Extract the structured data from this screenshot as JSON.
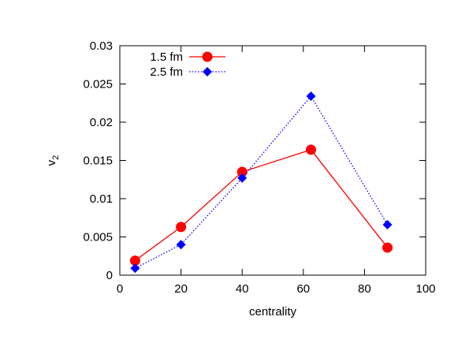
{
  "chart_data": {
    "type": "line",
    "xlabel": "centrality",
    "ylabel": "v",
    "ylabel_sub": "2",
    "xlim": [
      0,
      100
    ],
    "ylim": [
      0,
      0.03
    ],
    "xticks": [
      0,
      20,
      40,
      60,
      80,
      100
    ],
    "yticks": [
      0,
      0.005,
      0.01,
      0.015,
      0.02,
      0.025,
      0.03
    ],
    "xtick_labels": [
      "0",
      "20",
      "40",
      "60",
      "80",
      "100"
    ],
    "ytick_labels": [
      "0",
      "0.005",
      "0.01",
      "0.015",
      "0.02",
      "0.025",
      "0.03"
    ],
    "grid": false,
    "legend": "top-left",
    "series": [
      {
        "name": "1.5 fm",
        "color": "#ff0000",
        "line": "solid",
        "marker": "circle",
        "x": [
          5,
          20,
          40,
          62.5,
          87.5
        ],
        "y": [
          0.0019,
          0.0063,
          0.0135,
          0.0164,
          0.0036
        ]
      },
      {
        "name": "2.5 fm",
        "color": "#0000ff",
        "line": "dotted",
        "marker": "diamond",
        "x": [
          5,
          20,
          40,
          62.5,
          87.5
        ],
        "y": [
          0.0009,
          0.004,
          0.0127,
          0.0234,
          0.0066
        ]
      }
    ]
  }
}
